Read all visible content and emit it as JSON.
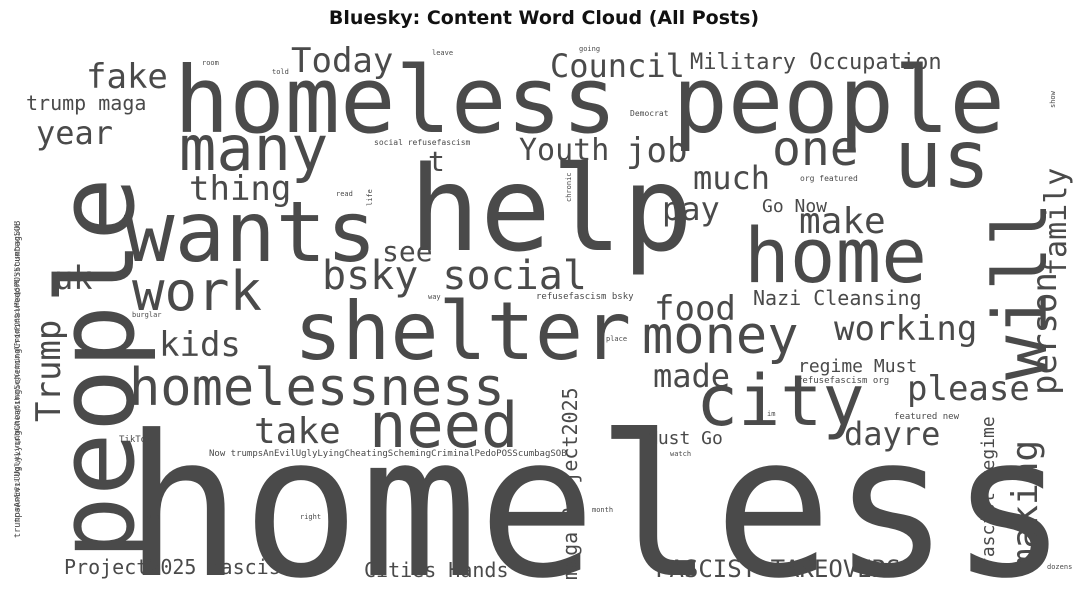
{
  "title": "Bluesky: Content Word Cloud (All Posts)",
  "word_color": "#4a4a4a",
  "words": {
    "homeless_big": "homeless",
    "people_vert": "people",
    "homeless_people": "homeless people",
    "help": "help",
    "wants": "wants",
    "shelter": "shelter",
    "home": "home",
    "us": "us",
    "city": "city",
    "will": "will",
    "many": "many",
    "homelessness": "homelessness",
    "need": "need",
    "work": "work",
    "money": "money",
    "one": "one",
    "bsky_social": "bsky social",
    "today": "Today",
    "council": "Council",
    "military_occupation": "Military Occupation",
    "fake": "fake",
    "trump_maga": "trump maga",
    "year": "year",
    "thing": "thing",
    "t": "t",
    "youth": "Youth",
    "job": "job",
    "much": "much",
    "pay": "pay",
    "go_now": "Go Now",
    "make": "make",
    "family": "family",
    "person": "person",
    "uk": "uk",
    "see": "see",
    "food": "food",
    "nazi_cleansing": "Nazi Cleansing",
    "working": "working",
    "kids": "kids",
    "trump_vert": "Trump",
    "made": "made",
    "regime_must": "regime Must",
    "please": "please",
    "take": "take",
    "dayre": "dayre",
    "must_go": "Must Go",
    "making": "making",
    "fascist_regime": "fascist regime",
    "project2025_fascist": "Project2025 fascist",
    "cities_hands": "Cities Hands",
    "fascist_takeovers": "FASCIST TAKEOVERS",
    "maga_project2025": "maga Project2025",
    "refusefascism_org": "refusefascism org",
    "featured_new": "featured new",
    "tiktok": "TikTok",
    "now_trumps": "Now trumpsAnEvilUglyLyingCheatingSchemingCriminalPedoPOSScumbagSOB",
    "trumps_vert": "trumpsAnEvilUglyLyingCheatingSchemingCriminalPedoPOSScumbagSOB",
    "trumps_refuse_vert": "trumpsAnEvilUglyLyingCheatingSchemingCriminalPedoPOSScumbagSOB refusefascism",
    "social_refusefascism": "social refusefascism",
    "refusefascism_bsky": "refusefascism bsky",
    "democrat": "Democrat",
    "org_featured": "org featured",
    "room": "room",
    "told": "told",
    "leave": "leave",
    "going": "going",
    "show": "show",
    "read": "read",
    "life": "life",
    "chronic": "chronic",
    "burglar": "burglar",
    "way": "way",
    "place": "place",
    "im": "im",
    "watch": "watch",
    "old": "old",
    "right": "right",
    "month": "month",
    "dozens": "dozens"
  }
}
